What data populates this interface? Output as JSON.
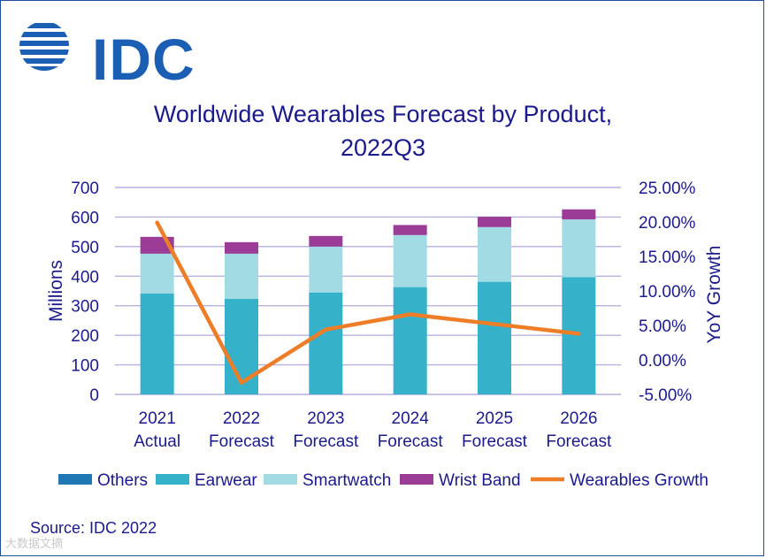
{
  "logo": {
    "text": "IDC",
    "brand_color": "#1b5fb5"
  },
  "chart_data": {
    "type": "bar",
    "title_line1": "Worldwide Wearables Forecast by Product,",
    "title_line2": "2022Q3",
    "ylabel": "Millions",
    "y2label": "YoY Growth",
    "ylim": [
      0,
      700
    ],
    "y2lim": [
      -5,
      25
    ],
    "yticks": [
      "0",
      "100",
      "200",
      "300",
      "400",
      "500",
      "600",
      "700"
    ],
    "y2ticks": [
      "-5.00%",
      "0.00%",
      "5.00%",
      "10.00%",
      "15.00%",
      "20.00%",
      "25.00%"
    ],
    "categories": [
      [
        "2021",
        "Actual"
      ],
      [
        "2022",
        "Forecast"
      ],
      [
        "2023",
        "Forecast"
      ],
      [
        "2024",
        "Forecast"
      ],
      [
        "2025",
        "Forecast"
      ],
      [
        "2026",
        "Forecast"
      ]
    ],
    "series": [
      {
        "name": "Others",
        "color": "#1f77b4",
        "values": [
          1,
          1,
          1,
          1,
          1,
          1
        ]
      },
      {
        "name": "Earwear",
        "color": "#35b1c9",
        "values": [
          340,
          322,
          344,
          362,
          380,
          396
        ]
      },
      {
        "name": "Smartwatch",
        "color": "#a3dbe5",
        "values": [
          135,
          153,
          155,
          176,
          185,
          195
        ]
      },
      {
        "name": "Wrist Band",
        "color": "#9b3d96",
        "values": [
          57,
          39,
          36,
          34,
          35,
          34
        ]
      }
    ],
    "line_series": {
      "name": "Wearables Growth",
      "color": "#ee7d28",
      "values": [
        19.9,
        -3.3,
        4.4,
        6.6,
        5.2,
        3.8
      ]
    },
    "grid": true,
    "legend_position": "bottom"
  },
  "source": "Source: IDC 2022",
  "watermark": "大数据文摘"
}
